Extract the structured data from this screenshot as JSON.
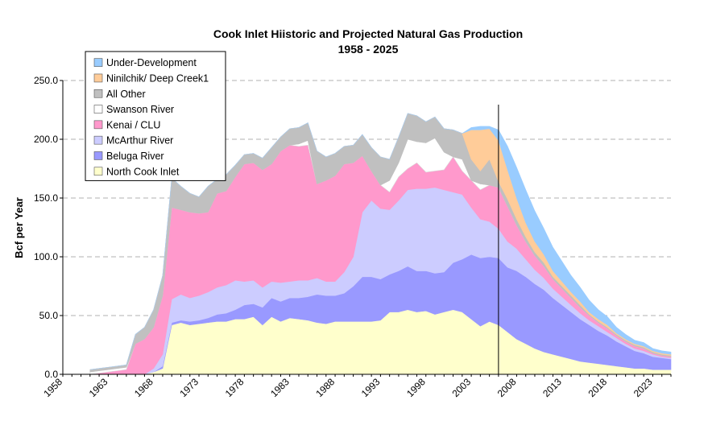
{
  "chart_data": {
    "type": "area",
    "stacked": true,
    "title": "Cook Inlet Hiistoric and Projected Natural Gas Production",
    "subtitle": "1958 - 2025",
    "xlabel": "",
    "ylabel": "Bcf per Year",
    "xlim": [
      1958,
      2025
    ],
    "ylim": [
      0,
      250
    ],
    "yticks": [
      "0.0",
      "50.0",
      "100.0",
      "150.0",
      "200.0",
      "250.0"
    ],
    "ytick_values": [
      0,
      50,
      100,
      150,
      200,
      250
    ],
    "xticks": [
      "1958",
      "1963",
      "1968",
      "1973",
      "1978",
      "1983",
      "1988",
      "1993",
      "1998",
      "2003",
      "2008",
      "2013",
      "2018",
      "2023"
    ],
    "xtick_values": [
      1958,
      1963,
      1968,
      1973,
      1978,
      1983,
      1988,
      1993,
      1998,
      2003,
      2008,
      2013,
      2018,
      2023
    ],
    "grid": "horizontal dashed",
    "legend_position": "top-left",
    "annotation": "vertical line at 2006 separating historic and projected",
    "divider_year": 2006,
    "x": [
      1961,
      1963,
      1964,
      1965,
      1966,
      1967,
      1968,
      1969,
      1970,
      1971,
      1972,
      1973,
      1974,
      1975,
      1976,
      1977,
      1978,
      1979,
      1980,
      1981,
      1982,
      1983,
      1984,
      1985,
      1986,
      1987,
      1988,
      1989,
      1990,
      1991,
      1992,
      1993,
      1994,
      1995,
      1996,
      1997,
      1998,
      1999,
      2000,
      2001,
      2002,
      2003,
      2004,
      2005,
      2006,
      2007,
      2008,
      2009,
      2010,
      2011,
      2012,
      2013,
      2014,
      2015,
      2016,
      2017,
      2018,
      2019,
      2020,
      2021,
      2022,
      2023,
      2024,
      2025
    ],
    "series": [
      {
        "name": "North Cook Inlet",
        "color": "#ffffcc",
        "values": [
          0,
          0,
          0,
          0,
          0,
          0,
          2,
          5,
          42,
          44,
          42,
          43,
          44,
          45,
          45,
          47,
          47,
          49,
          42,
          49,
          45,
          48,
          47,
          46,
          44,
          43,
          45,
          45,
          45,
          45,
          45,
          46,
          53,
          53,
          55,
          53,
          54,
          51,
          53,
          55,
          53,
          47,
          41,
          45,
          42,
          36,
          30,
          26,
          22,
          19,
          17,
          15,
          13,
          11,
          10,
          9,
          8,
          7,
          6,
          5,
          5,
          4,
          4,
          4
        ]
      },
      {
        "name": "Beluga River",
        "color": "#9999ff",
        "values": [
          0,
          0,
          0,
          0,
          0,
          0,
          0,
          2,
          2,
          2,
          3,
          3,
          4,
          6,
          7,
          8,
          12,
          11,
          15,
          16,
          17,
          17,
          18,
          20,
          24,
          24,
          22,
          24,
          30,
          38,
          38,
          35,
          32,
          35,
          37,
          35,
          34,
          35,
          34,
          40,
          45,
          55,
          58,
          55,
          57,
          55,
          58,
          57,
          55,
          53,
          48,
          44,
          40,
          36,
          32,
          28,
          25,
          21,
          18,
          15,
          13,
          11,
          10,
          9
        ]
      },
      {
        "name": "McArthur River",
        "color": "#ccccff",
        "values": [
          0,
          0,
          0,
          0,
          0,
          0,
          3,
          10,
          20,
          22,
          20,
          21,
          22,
          23,
          24,
          25,
          20,
          20,
          17,
          14,
          16,
          14,
          15,
          14,
          14,
          12,
          12,
          18,
          25,
          55,
          65,
          60,
          55,
          60,
          65,
          70,
          70,
          73,
          70,
          60,
          55,
          40,
          33,
          30,
          25,
          22,
          19,
          15,
          12,
          10,
          8,
          7,
          6,
          5,
          4,
          4,
          3,
          3,
          2,
          2,
          2,
          2,
          1,
          1
        ]
      },
      {
        "name": "Kenai / CLU",
        "color": "#ff99cc",
        "values": [
          0,
          2,
          3,
          4,
          26,
          30,
          35,
          50,
          78,
          72,
          73,
          70,
          68,
          80,
          80,
          88,
          100,
          100,
          100,
          100,
          112,
          116,
          114,
          115,
          80,
          86,
          90,
          92,
          80,
          48,
          25,
          20,
          15,
          20,
          18,
          22,
          14,
          14,
          17,
          30,
          20,
          23,
          25,
          31,
          35,
          30,
          20,
          15,
          12,
          10,
          8,
          7,
          6,
          5,
          4,
          3,
          3,
          2,
          2,
          2,
          2,
          1,
          1,
          1
        ]
      },
      {
        "name": "Swanson River",
        "color": "#ffffff",
        "values": [
          2,
          2,
          2,
          2,
          0,
          0,
          0,
          0,
          0,
          0,
          0,
          0,
          0,
          0,
          0,
          0,
          0,
          0,
          0,
          0,
          0,
          0,
          2,
          4,
          0,
          0,
          0,
          0,
          0,
          0,
          0,
          0,
          10,
          12,
          25,
          18,
          25,
          28,
          15,
          0,
          10,
          0,
          5,
          0,
          0,
          0,
          0,
          0,
          0,
          0,
          0,
          0,
          0,
          0,
          0,
          0,
          0,
          0,
          0,
          0,
          0,
          0,
          0,
          0
        ]
      },
      {
        "name": "All Other",
        "color": "#c0c0c0",
        "values": [
          2,
          2,
          2,
          2,
          8,
          10,
          15,
          17,
          25,
          20,
          16,
          14,
          22,
          12,
          14,
          10,
          8,
          8,
          10,
          14,
          12,
          14,
          14,
          15,
          28,
          20,
          19,
          15,
          15,
          18,
          20,
          24,
          18,
          22,
          22,
          22,
          18,
          18,
          20,
          23,
          22,
          18,
          11,
          22,
          5,
          6,
          5,
          4,
          3,
          3,
          2,
          2,
          2,
          2,
          1,
          1,
          1,
          1,
          1,
          1,
          1,
          1,
          1,
          1
        ]
      },
      {
        "name": "Ninilchik/ Deep Creek1",
        "color": "#ffcc99",
        "values": [
          0,
          0,
          0,
          0,
          0,
          0,
          0,
          0,
          0,
          0,
          0,
          0,
          0,
          0,
          0,
          0,
          0,
          0,
          0,
          0,
          0,
          0,
          0,
          0,
          0,
          0,
          0,
          0,
          0,
          0,
          0,
          0,
          0,
          0,
          0,
          0,
          0,
          0,
          0,
          0,
          0,
          25,
          35,
          26,
          35,
          25,
          18,
          12,
          9,
          7,
          5,
          4,
          3,
          3,
          2,
          2,
          2,
          1,
          1,
          1,
          1,
          1,
          1,
          1
        ]
      },
      {
        "name": "Under-Development",
        "color": "#99ccff",
        "values": [
          0,
          0,
          0,
          0,
          0,
          0,
          0,
          0,
          0,
          0,
          0,
          0,
          0,
          0,
          0,
          0,
          0,
          0,
          0,
          0,
          0,
          0,
          0,
          0,
          0,
          0,
          0,
          0,
          0,
          0,
          0,
          0,
          0,
          0,
          0,
          0,
          0,
          0,
          0,
          0,
          0,
          2,
          3,
          2,
          9,
          20,
          26,
          28,
          26,
          22,
          20,
          17,
          14,
          12,
          10,
          8,
          7,
          5,
          4,
          3,
          3,
          2,
          2,
          2
        ]
      }
    ]
  }
}
